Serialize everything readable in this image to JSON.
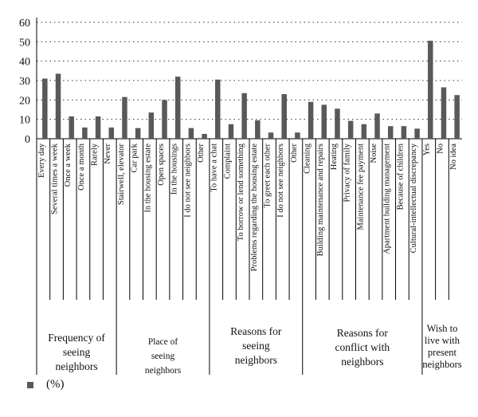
{
  "chart_data": {
    "type": "bar",
    "title": "",
    "xlabel": "",
    "ylabel": "",
    "ylim": [
      0,
      60
    ],
    "yticks": [
      0,
      10,
      20,
      30,
      40,
      50,
      60
    ],
    "grid": "dotted horizontal",
    "bar_color": "#595959",
    "series": [
      {
        "name": "(%)",
        "values": [
          31,
          33.5,
          11.5,
          5.8,
          11.5,
          5.8,
          21.5,
          5.5,
          13.5,
          20,
          32,
          5.5,
          2.5,
          30.5,
          7.5,
          23.5,
          9.5,
          3.2,
          23,
          3.2,
          19,
          17.5,
          15.5,
          9.2,
          7.5,
          13,
          6.5,
          6.5,
          5.2,
          50.5,
          26.5,
          22.5
        ]
      }
    ],
    "categories": [
      "Every day",
      "Several times a week",
      "Once a week",
      "Once a month",
      "Rarely",
      "Never",
      "Stairwell, elevator",
      "Car park",
      "In the housing estate",
      "Open spaces",
      "In the housings",
      "I do not see neighbors",
      "Other",
      "To have a chat",
      "Complaint",
      "To borrow or lend something",
      "Problems regarding the housing estate",
      "To greet each other",
      "I do not see neighbors",
      "Other",
      "Cleaning",
      "Building maintenance and repairs",
      "Heating",
      "Privacy of family",
      "Maintenance fee payment",
      "Noise",
      "Apartment building management",
      "Because of children",
      "Cultural-intellectual discrepancy",
      "Yes",
      "No",
      "No idea"
    ],
    "groups": [
      {
        "label": [
          "Frequency of",
          "seeing",
          "neighbors"
        ],
        "start": 0,
        "end": 5
      },
      {
        "label": [
          "Place of",
          "seeing",
          "neighbors"
        ],
        "start": 6,
        "end": 12
      },
      {
        "label": [
          "Reasons for",
          "seeing",
          "neighbors"
        ],
        "start": 13,
        "end": 19
      },
      {
        "label": [
          "Reasons for",
          "conflict with",
          "neighbors"
        ],
        "start": 20,
        "end": 28
      },
      {
        "label": [
          "Wish to",
          "live with",
          "present",
          "neighbors"
        ],
        "start": 29,
        "end": 31
      }
    ],
    "legend": "bottom-left"
  }
}
